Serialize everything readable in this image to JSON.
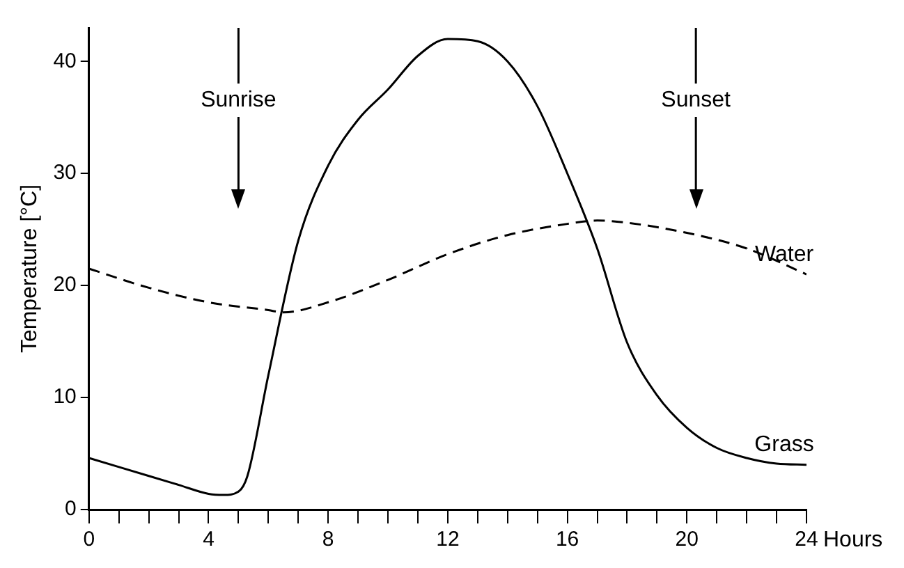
{
  "chart_data": {
    "type": "line",
    "xlabel": "Hours",
    "ylabel": "Temperature [°C]",
    "xlim": [
      0,
      24
    ],
    "ylim": [
      0,
      43
    ],
    "xticks": [
      0,
      {
        "value": 1,
        "label": null
      },
      {
        "value": 2,
        "label": null
      },
      {
        "value": 3,
        "label": null
      },
      4,
      {
        "value": 5,
        "label": null
      },
      {
        "value": 6,
        "label": null
      },
      {
        "value": 7,
        "label": null
      },
      8,
      {
        "value": 9,
        "label": null
      },
      {
        "value": 10,
        "label": null
      },
      {
        "value": 11,
        "label": null
      },
      12,
      {
        "value": 13,
        "label": null
      },
      {
        "value": 14,
        "label": null
      },
      {
        "value": 15,
        "label": null
      },
      16,
      {
        "value": 17,
        "label": null
      },
      {
        "value": 18,
        "label": null
      },
      {
        "value": 19,
        "label": null
      },
      20,
      {
        "value": 21,
        "label": null
      },
      {
        "value": 22,
        "label": null
      },
      {
        "value": 23,
        "label": null
      },
      24
    ],
    "yticks": [
      0,
      10,
      20,
      30,
      40
    ],
    "grid": false,
    "legend": false,
    "marker": "none",
    "series": [
      {
        "name": "Grass",
        "color": "#000000",
        "line_style": "solid",
        "x": [
          0,
          1,
          2,
          3,
          4,
          4.5,
          5,
          5.3,
          6,
          7,
          8,
          9,
          10,
          11,
          12,
          13,
          14,
          15,
          16,
          17,
          18,
          19,
          20,
          21,
          22,
          23,
          24
        ],
        "values": [
          4.6,
          3.8,
          3,
          2.2,
          1.4,
          1.3,
          1.6,
          3,
          12,
          24,
          30.7,
          34.8,
          37.5,
          40.5,
          42,
          41.8,
          40,
          36,
          30,
          23.3,
          14.9,
          10.2,
          7.3,
          5.5,
          4.6,
          4.1,
          4
        ]
      },
      {
        "name": "Water",
        "color": "#000000",
        "line_style": "dashed",
        "x": [
          0,
          2,
          4,
          6,
          6.5,
          8,
          10,
          12,
          14,
          16,
          17,
          18,
          20,
          22,
          24
        ],
        "values": [
          21.5,
          19.8,
          18.5,
          17.8,
          17.6,
          18.5,
          20.5,
          22.8,
          24.5,
          25.5,
          25.8,
          25.6,
          24.7,
          23.3,
          21
        ]
      }
    ],
    "ref_lines": [
      {
        "axis": "x",
        "value": 5,
        "label": "Sunrise"
      },
      {
        "axis": "x",
        "value": 20.3,
        "label": "Sunset"
      }
    ]
  }
}
